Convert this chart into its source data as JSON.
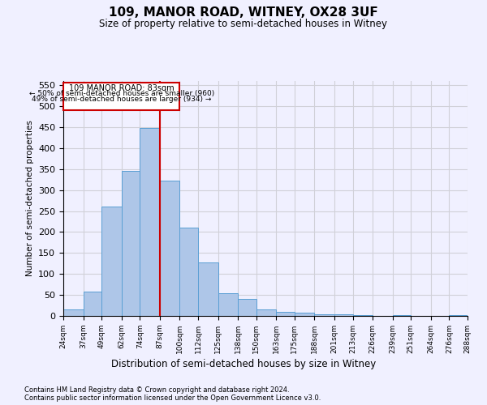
{
  "title": "109, MANOR ROAD, WITNEY, OX28 3UF",
  "subtitle": "Size of property relative to semi-detached houses in Witney",
  "xlabel": "Distribution of semi-detached houses by size in Witney",
  "ylabel": "Number of semi-detached properties",
  "footnote1": "Contains HM Land Registry data © Crown copyright and database right 2024.",
  "footnote2": "Contains public sector information licensed under the Open Government Licence v3.0.",
  "annotation_title": "109 MANOR ROAD: 83sqm",
  "annotation_line1": "← 50% of semi-detached houses are smaller (960)",
  "annotation_line2": "49% of semi-detached houses are larger (934) →",
  "bar_edges": [
    24,
    37,
    49,
    62,
    74,
    87,
    100,
    112,
    125,
    138,
    150,
    163,
    175,
    188,
    201,
    213,
    226,
    239,
    251,
    264,
    276
  ],
  "bar_heights": [
    15,
    57,
    260,
    345,
    448,
    322,
    210,
    128,
    55,
    40,
    15,
    10,
    7,
    4,
    3,
    1,
    0,
    1,
    0,
    0,
    2
  ],
  "bar_color": "#aec6e8",
  "bar_edge_color": "#5a9fd4",
  "vline_x": 87,
  "vline_color": "#cc0000",
  "ylim": [
    0,
    560
  ],
  "yticks": [
    0,
    50,
    100,
    150,
    200,
    250,
    300,
    350,
    400,
    450,
    500,
    550
  ],
  "grid_color": "#d0d0d8",
  "bg_color": "#f0f0ff",
  "annotation_box_color": "#ffffff",
  "annotation_box_edgecolor": "#cc0000"
}
